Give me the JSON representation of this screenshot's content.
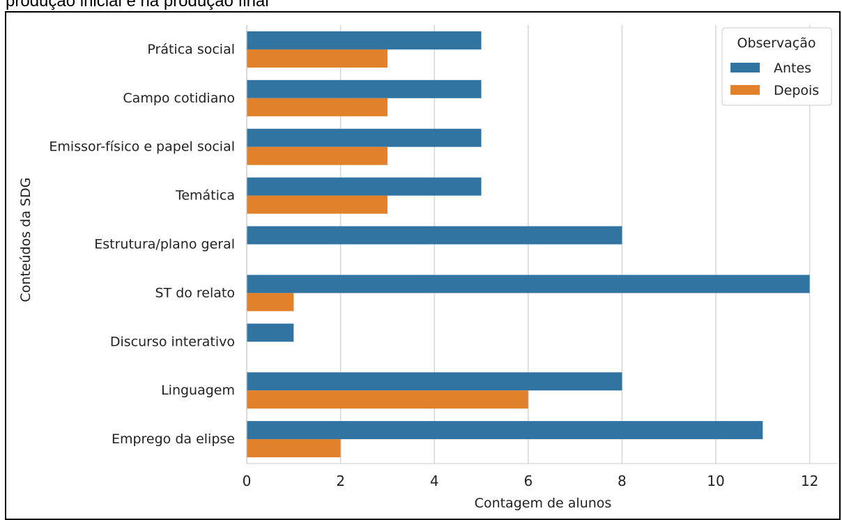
{
  "top_caption": "produção inicial e na produção final",
  "chart_data": {
    "type": "bar",
    "orientation": "horizontal",
    "title": "",
    "xlabel": "Contagem de alunos",
    "ylabel": "Conteúdos da SDG",
    "xlim": [
      0,
      12.6
    ],
    "x_ticks": [
      0,
      2,
      4,
      6,
      8,
      10,
      12
    ],
    "grid": "vertical",
    "categories": [
      "Prática social",
      "Campo cotidiano",
      "Emissor-físico e papel social",
      "Temática",
      "Estrutura/plano geral",
      "ST do relato",
      "Discurso interativo",
      "Linguagem",
      "Emprego da elipse"
    ],
    "series": [
      {
        "name": "Antes",
        "color": "#3274a1",
        "values": [
          5,
          5,
          5,
          5,
          8,
          12,
          1,
          8,
          11
        ]
      },
      {
        "name": "Depois",
        "color": "#e1812c",
        "values": [
          3,
          3,
          3,
          3,
          null,
          1,
          null,
          6,
          2
        ]
      }
    ],
    "legend": {
      "title": "Observação",
      "placement": "top-right"
    }
  }
}
